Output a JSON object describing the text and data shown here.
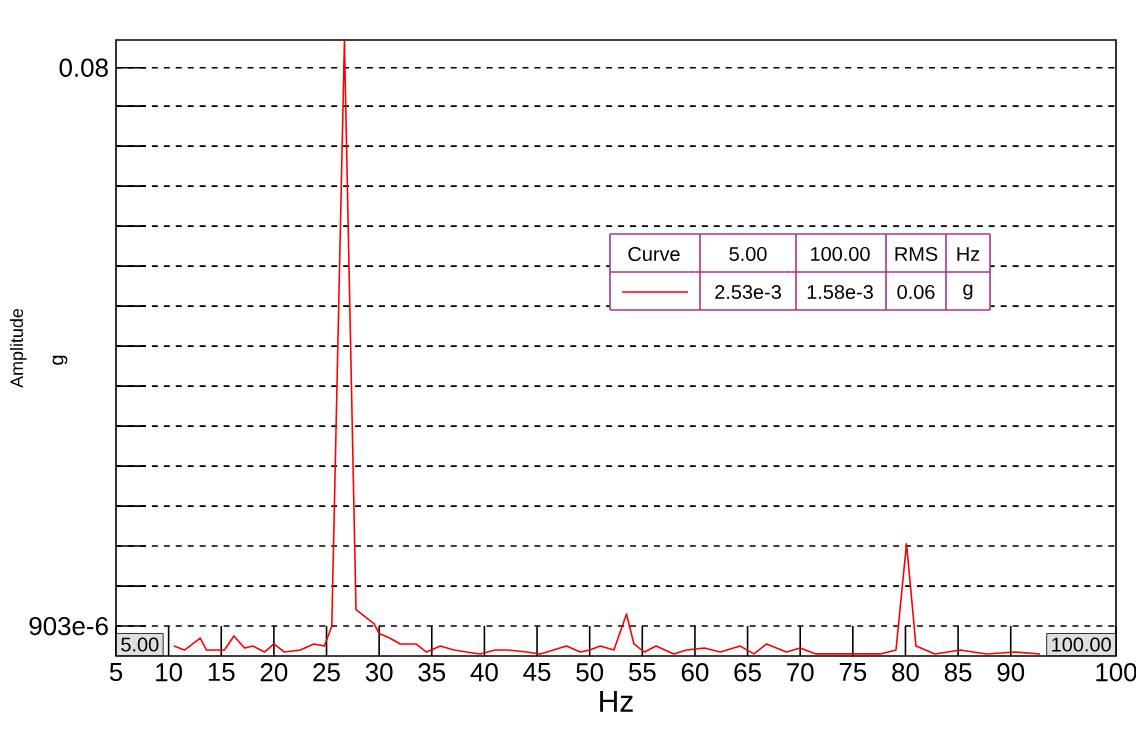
{
  "chart_data": {
    "type": "line",
    "xlabel": "Hz",
    "ylabel": "Amplitude",
    "x": [
      10.5,
      11.5,
      13,
      13.6,
      15.3,
      16.2,
      17.2,
      18,
      19.1,
      20,
      21,
      22.5,
      23.8,
      24.8,
      25.5,
      26.7,
      27.8,
      29.5,
      30,
      31,
      32,
      33.5,
      34.5,
      35.8,
      37.1,
      38.3,
      39.6,
      41,
      42.2,
      44,
      45.3,
      47.8,
      49.1,
      50,
      51,
      52.3,
      53.5,
      54.2,
      55.2,
      56.3,
      58,
      59.2,
      60.9,
      62.4,
      64.3,
      65.6,
      66.8,
      68.7,
      70,
      71.5,
      73.2,
      75.2,
      77.6,
      79.1,
      80.1,
      81,
      82.8,
      85.2,
      87.7,
      90.4,
      92.8
    ],
    "series": [
      {
        "color": "#ff0000",
        "values": [
          0.000769,
          0.000745,
          0.00082,
          0.000745,
          0.000745,
          0.000834,
          0.000757,
          0.000769,
          0.000733,
          0.000782,
          0.000733,
          0.000745,
          0.000782,
          0.000769,
          0.000903,
          0.099,
          0.00103,
          0.00092,
          0.00085,
          0.00082,
          0.000782,
          0.000782,
          0.000733,
          0.000769,
          0.000745,
          0.000733,
          0.000722,
          0.000745,
          0.000745,
          0.000733,
          0.000722,
          0.000769,
          0.000733,
          0.000745,
          0.000769,
          0.000745,
          0.000995,
          0.000782,
          0.000733,
          0.000769,
          0.000722,
          0.000745,
          0.000757,
          0.000733,
          0.000769,
          0.000722,
          0.000782,
          0.000733,
          0.000757,
          0.000722,
          0.000722,
          0.000722,
          0.000722,
          0.000745,
          0.00175,
          0.000769,
          0.000722,
          0.000745,
          0.000722,
          0.000733,
          0.000722
        ]
      }
    ],
    "xlim": [
      5,
      100
    ],
    "ylim": [
      0.00071,
      0.1
    ],
    "log": "y",
    "grid": "y",
    "xticks": [
      5,
      10,
      15,
      20,
      25,
      30,
      35,
      40,
      45,
      50,
      55,
      60,
      65,
      70,
      75,
      80,
      85,
      90,
      100
    ],
    "yticks": [
      {
        "value": 0.000903,
        "label": "903e-6"
      },
      {
        "value": 0.001245,
        "label": null
      },
      {
        "value": 0.001717,
        "label": null
      },
      {
        "value": 0.002367,
        "label": null
      },
      {
        "value": 0.003264,
        "label": null
      },
      {
        "value": 0.0045,
        "label": null
      },
      {
        "value": 0.006205,
        "label": null
      },
      {
        "value": 0.008556,
        "label": null
      },
      {
        "value": 0.0118,
        "label": null
      },
      {
        "value": 0.01627,
        "label": null
      },
      {
        "value": 0.02243,
        "label": null
      },
      {
        "value": 0.03093,
        "label": null
      },
      {
        "value": 0.04264,
        "label": null
      },
      {
        "value": 0.0588,
        "label": null
      },
      0.08
    ],
    "annotations": [
      "5.00",
      "100.00",
      "Curve",
      "5.00",
      "100.00",
      "RMS",
      "Hz",
      "2.53e-3",
      "1.58e-3",
      "0.06",
      "g",
      "g"
    ]
  }
}
